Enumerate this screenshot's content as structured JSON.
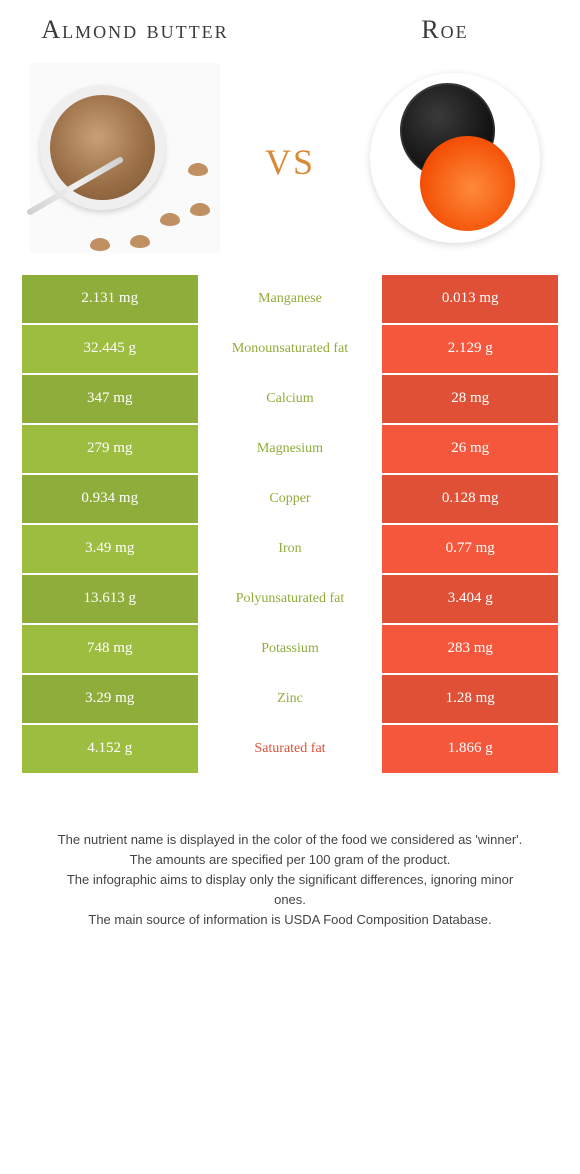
{
  "food_left": {
    "title": "Almond butter"
  },
  "food_right": {
    "title": "Roe"
  },
  "vs_label": "vs",
  "colors": {
    "left_bg": "#8fad3a",
    "right_bg": "#e05037",
    "mid_text_left": "#8fad3a",
    "mid_text_right": "#e05037"
  },
  "rows": [
    {
      "left": "2.131 mg",
      "name": "Manganese",
      "right": "0.013 mg",
      "winner": "left"
    },
    {
      "left": "32.445 g",
      "name": "Monounsaturated fat",
      "right": "2.129 g",
      "winner": "left"
    },
    {
      "left": "347 mg",
      "name": "Calcium",
      "right": "28 mg",
      "winner": "left"
    },
    {
      "left": "279 mg",
      "name": "Magnesium",
      "right": "26 mg",
      "winner": "left"
    },
    {
      "left": "0.934 mg",
      "name": "Copper",
      "right": "0.128 mg",
      "winner": "left"
    },
    {
      "left": "3.49 mg",
      "name": "Iron",
      "right": "0.77 mg",
      "winner": "left"
    },
    {
      "left": "13.613 g",
      "name": "Polyunsaturated fat",
      "right": "3.404 g",
      "winner": "left"
    },
    {
      "left": "748 mg",
      "name": "Potassium",
      "right": "283 mg",
      "winner": "left"
    },
    {
      "left": "3.29 mg",
      "name": "Zinc",
      "right": "1.28 mg",
      "winner": "left"
    },
    {
      "left": "4.152 g",
      "name": "Saturated fat",
      "right": "1.866 g",
      "winner": "right"
    }
  ],
  "row_shade": {
    "even": 1.0,
    "odd": 1.09
  },
  "footer_lines": [
    "The nutrient name is displayed in the color of the food we considered as 'winner'.",
    "The amounts are specified per 100 gram of the product.",
    "The infographic aims to display only the significant differences, ignoring minor ones.",
    "The main source of information is USDA Food Composition Database."
  ]
}
